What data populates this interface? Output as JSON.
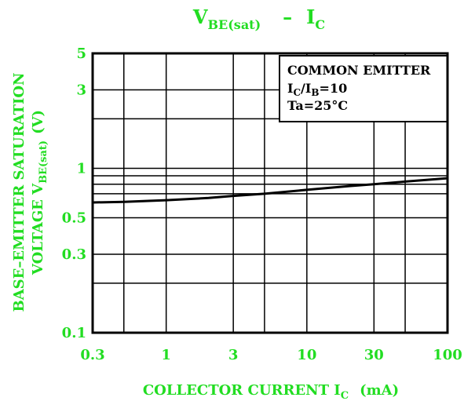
{
  "chart_data": {
    "type": "line",
    "title": {
      "main": "V",
      "main_sub": "BE(sat)",
      "dash": "–",
      "right": "I",
      "right_sub": "C"
    },
    "xlabel": {
      "main": "COLLECTOR CURRENT I",
      "sub": "C",
      "unit": "(mA)"
    },
    "ylabel": {
      "line1": "BASE–EMITTER SATURATION",
      "line2_prefix": "VOLTAGE V",
      "line2_sub": "BE(sat)",
      "line2_unit": "(V)"
    },
    "x_scale": "log",
    "y_scale": "log",
    "xlim": [
      0.3,
      100
    ],
    "ylim": [
      0.1,
      5
    ],
    "x_ticks": [
      {
        "value": 0.3,
        "label": "0.3"
      },
      {
        "value": 1,
        "label": "1"
      },
      {
        "value": 3,
        "label": "3"
      },
      {
        "value": 10,
        "label": "10"
      },
      {
        "value": 30,
        "label": "30"
      },
      {
        "value": 100,
        "label": "100"
      }
    ],
    "y_ticks": [
      {
        "value": 0.1,
        "label": "0.1"
      },
      {
        "value": 0.3,
        "label": "0.3"
      },
      {
        "value": 0.5,
        "label": "0.5"
      },
      {
        "value": 1,
        "label": "1"
      },
      {
        "value": 3,
        "label": "3"
      },
      {
        "value": 5,
        "label": "5"
      }
    ],
    "x_grid": [
      0.3,
      0.5,
      1,
      3,
      5,
      10,
      30,
      50,
      100
    ],
    "y_grid": [
      0.1,
      0.2,
      0.3,
      0.5,
      0.7,
      0.8,
      0.9,
      1,
      2,
      3,
      5
    ],
    "grid": true,
    "annotation": {
      "line1": "COMMON EMITTER",
      "line2_a": "I",
      "line2_a_sub": "C",
      "line2_b": "/I",
      "line2_b_sub": "B",
      "line2_c": "=10",
      "line3": "Ta=25°C"
    },
    "series": [
      {
        "x": [
          0.3,
          0.5,
          1,
          2,
          3,
          5,
          10,
          20,
          30,
          50,
          100
        ],
        "y": [
          0.62,
          0.625,
          0.64,
          0.66,
          0.68,
          0.7,
          0.74,
          0.78,
          0.8,
          0.83,
          0.87
        ]
      }
    ],
    "colors": {
      "text": "#22dd22",
      "axes": "#000000",
      "line": "#000000"
    }
  }
}
